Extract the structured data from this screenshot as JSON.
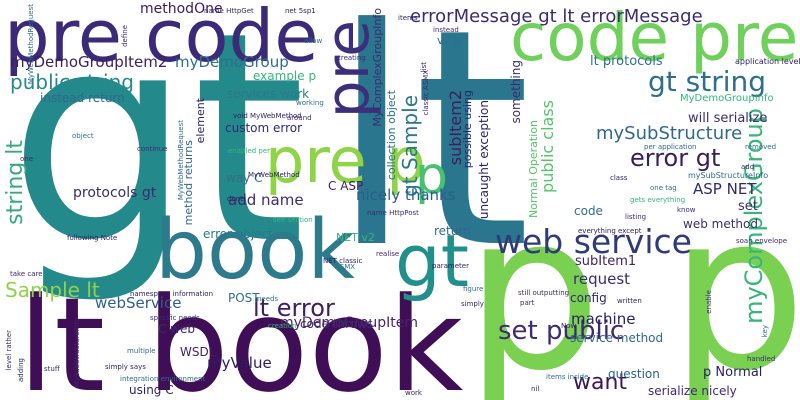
{
  "cloud": {
    "words": [
      "gt",
      "lt",
      "p p",
      "lt book",
      "pre code",
      "code pre",
      "book",
      "pre p",
      "web service",
      "gt",
      "pre",
      "p",
      "gt string",
      "myComplexGroup",
      "error gt",
      "set public",
      "string lt",
      "Sample lt",
      "lt error",
      "public string",
      "public class",
      "gt Sample",
      "subItem2",
      "code throws",
      "errorMessage gt lt errorMessage",
      "myDemoGroupItem2",
      "myDemoGroup",
      "methodOne",
      "mySubStructure",
      "ASP NET",
      "want",
      "machine",
      "protocols gt",
      "request",
      "nicely thanks",
      "add name",
      "webService",
      "myValue",
      "myDemoGroupItem",
      "instead return",
      "services work",
      "lt protocols",
      "uncaught exception",
      "something",
      "MyComplexGroupInfo",
      "collection object",
      "possible using",
      "will serialize",
      "C ASP",
      "way C",
      "custom error",
      "method returns",
      "element",
      "error object",
      "POST",
      "C web",
      "WSDL",
      "using C",
      "question",
      "p Normal",
      "serialize nicely",
      "service method",
      "config",
      "subItem1",
      "web method",
      "set",
      "code",
      "return",
      "NET v2",
      "example p",
      "MyDemoGroupInfo",
      "Normal Operation",
      "application level",
      "mySubStructureInfo",
      "MyWebMethodRequest",
      "name HttpGet",
      "net 5sp1",
      "name HttpPost",
      "v2 p",
      "everything except",
      "soap envelope",
      "integration environment",
      "still outputting",
      "simply says",
      "stuff",
      "multiple",
      "adding",
      "level rather",
      "take care",
      "following Note",
      "object",
      "continue",
      "done",
      "one",
      "one tag",
      "class",
      "know",
      "removed",
      "add",
      "enabled per",
      "per application",
      "namespace information",
      "specific needs",
      "realise",
      "figure",
      "parameter",
      "handled",
      "key",
      "enable",
      "Now",
      "nil",
      "items inside",
      "work",
      "part",
      "written",
      "simply",
      "ASMX",
      "classic ASMX",
      "NET classic",
      "gets everything",
      "listing",
      "items",
      "instead",
      "allow",
      "define",
      "list",
      "creating",
      "working",
      "around",
      "void MyWebMethod",
      "creation",
      "needs",
      "see section",
      "MyWebMethod",
      "MySubStructureInfo",
      "MyWebMethodRequest"
    ]
  }
}
